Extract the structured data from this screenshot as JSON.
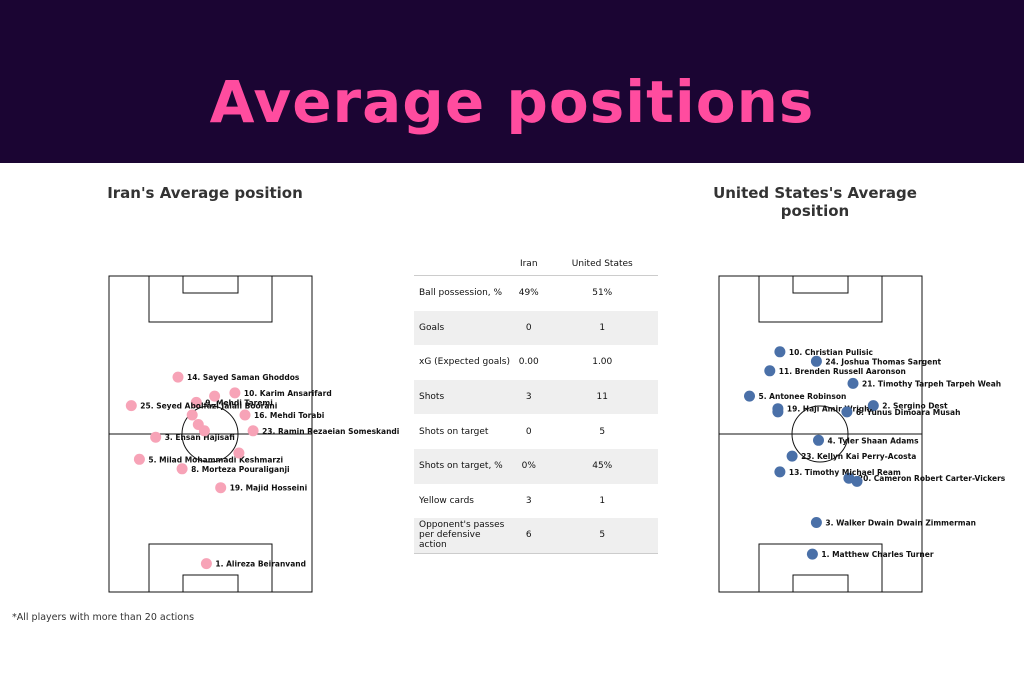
{
  "header": {
    "title": "Average positions"
  },
  "footnote": "*All players with more than 20 actions",
  "chart_data": [
    {
      "type": "scatter",
      "title": "Iran's Average position",
      "color": "#f7a3b7",
      "points": [
        {
          "label": "1. Alireza Beiranvand",
          "x": 0.48,
          "y": 0.91
        },
        {
          "label": "14. Sayed Saman Ghoddos",
          "x": 0.34,
          "y": 0.32
        },
        {
          "label": "9. Mehdi Taremi",
          "x": 0.43,
          "y": 0.4
        },
        {
          "label": "10. Karim Ansarifard",
          "x": 0.62,
          "y": 0.37
        },
        {
          "label": "25. Seyed Abolfazl Jalali Boorani",
          "x": 0.11,
          "y": 0.41
        },
        {
          "label": "16. Mehdi Torabi",
          "x": 0.67,
          "y": 0.44
        },
        {
          "label": "3. Ehsan Hajisafi",
          "x": 0.23,
          "y": 0.51
        },
        {
          "label": "23. Ramin Rezaeian Someskandi",
          "x": 0.71,
          "y": 0.49
        },
        {
          "label": "5. Milad Mohammadi Keshmarzi",
          "x": 0.15,
          "y": 0.58
        },
        {
          "label": "8. Morteza Pouraliganji",
          "x": 0.36,
          "y": 0.61
        },
        {
          "label": "19. Majid Hosseini",
          "x": 0.55,
          "y": 0.67
        },
        {
          "label": "",
          "x": 0.52,
          "y": 0.38
        },
        {
          "label": "",
          "x": 0.41,
          "y": 0.44
        },
        {
          "label": "",
          "x": 0.44,
          "y": 0.47
        },
        {
          "label": "",
          "x": 0.47,
          "y": 0.49
        },
        {
          "label": "",
          "x": 0.64,
          "y": 0.56
        }
      ]
    },
    {
      "type": "scatter",
      "title": "United States's Average position",
      "color": "#4a70a8",
      "points": [
        {
          "label": "1. Matthew Charles Turner",
          "x": 0.46,
          "y": 0.88
        },
        {
          "label": "3. Walker Dwain Dwain Zimmerman",
          "x": 0.48,
          "y": 0.78
        },
        {
          "label": "10. Christian Pulisic",
          "x": 0.3,
          "y": 0.24
        },
        {
          "label": "24. Joshua Thomas Sargent",
          "x": 0.48,
          "y": 0.27
        },
        {
          "label": "11. Brenden Russell Aaronson",
          "x": 0.25,
          "y": 0.3
        },
        {
          "label": "21. Timothy Tarpeh Tarpeh Weah",
          "x": 0.66,
          "y": 0.34
        },
        {
          "label": "5. Antonee Robinson",
          "x": 0.15,
          "y": 0.38
        },
        {
          "label": "19. Haji Amir Wright",
          "x": 0.29,
          "y": 0.42
        },
        {
          "label": "2. Sergino Dest",
          "x": 0.76,
          "y": 0.41
        },
        {
          "label": "6. Yunus Dimoara Musah",
          "x": 0.63,
          "y": 0.43
        },
        {
          "label": "4. Tyler Shaan Adams",
          "x": 0.49,
          "y": 0.52
        },
        {
          "label": "23. Kellyn Kai Perry-Acosta",
          "x": 0.36,
          "y": 0.57
        },
        {
          "label": "20. Cameron Robert Carter-Vickers",
          "x": 0.64,
          "y": 0.64
        },
        {
          "label": "13. Timothy Michael Ream",
          "x": 0.3,
          "y": 0.62
        },
        {
          "label": "",
          "x": 0.29,
          "y": 0.43
        },
        {
          "label": "",
          "x": 0.68,
          "y": 0.65
        }
      ]
    }
  ],
  "stats": {
    "columns": [
      "Iran",
      "United States"
    ],
    "rows": [
      {
        "metric": "Ball possession, %",
        "iran": "49%",
        "usa": "51%"
      },
      {
        "metric": "Goals",
        "iran": "0",
        "usa": "1"
      },
      {
        "metric": "xG (Expected goals)",
        "iran": "0.00",
        "usa": "1.00"
      },
      {
        "metric": "Shots",
        "iran": "3",
        "usa": "11"
      },
      {
        "metric": "Shots on target",
        "iran": "0",
        "usa": "5"
      },
      {
        "metric": "Shots on target, %",
        "iran": "0%",
        "usa": "45%"
      },
      {
        "metric": "Yellow cards",
        "iran": "3",
        "usa": "1"
      },
      {
        "metric": "Opponent's passes per defensive action",
        "iran": "6",
        "usa": "5"
      }
    ]
  }
}
